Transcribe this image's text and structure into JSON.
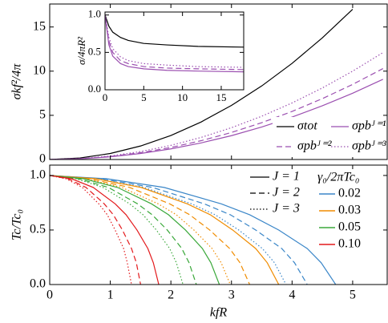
{
  "chart_data": [
    {
      "type": "line",
      "ylabel": "σkf²/4π",
      "xlim": [
        0,
        5.57
      ],
      "ylim": [
        0,
        17.6
      ],
      "xticks": [
        0,
        1,
        2,
        3,
        4,
        5
      ],
      "yticks": [
        0,
        5,
        10,
        15
      ],
      "x": [
        0,
        0.5,
        1,
        1.5,
        2,
        2.5,
        3,
        3.5,
        4,
        4.5,
        5,
        5.5
      ],
      "series": [
        {
          "name": "σtot",
          "color": "#000000",
          "dash": "solid",
          "values": [
            0,
            0.17,
            0.68,
            1.53,
            2.72,
            4.25,
            6.12,
            8.33,
            10.88,
            13.77,
            17.0,
            null
          ]
        },
        {
          "name": "σpbᴶ⁼¹",
          "color": "#9b4fb0",
          "dash": "solid",
          "values": [
            0,
            0.08,
            0.3,
            0.68,
            1.2,
            1.88,
            2.7,
            3.68,
            4.8,
            6.08,
            7.5,
            9.08
          ]
        },
        {
          "name": "σpbᴶ⁼²",
          "color": "#9b4fb0",
          "dash": "dashed",
          "values": [
            0,
            0.09,
            0.34,
            0.77,
            1.36,
            2.13,
            3.06,
            4.17,
            5.44,
            6.89,
            8.5,
            10.29
          ]
        },
        {
          "name": "σpbᴶ⁼³",
          "color": "#9b4fb0",
          "dash": "dotted",
          "values": [
            0,
            0.1,
            0.4,
            0.9,
            1.6,
            2.5,
            3.6,
            4.9,
            6.4,
            8.1,
            10.0,
            12.1
          ]
        }
      ],
      "legend": "lower right"
    },
    {
      "type": "line",
      "ylabel": "σ/4πR²",
      "xlim": [
        0,
        17.9
      ],
      "ylim": [
        0,
        1.04
      ],
      "xticks": [
        0,
        5,
        10,
        15
      ],
      "yticks": [
        {
          "value": 0,
          "label": "0.0"
        },
        {
          "value": 0.5,
          "label": "0.5"
        },
        {
          "value": 1,
          "label": "1.0"
        }
      ],
      "x": [
        0,
        0.5,
        1,
        2,
        3,
        5,
        8,
        12,
        18
      ],
      "series": [
        {
          "color": "#000000",
          "dash": "solid",
          "values": [
            1,
            0.85,
            0.77,
            0.7,
            0.66,
            0.62,
            0.6,
            0.58,
            0.57
          ]
        },
        {
          "color": "#9b4fb0",
          "dash": "solid",
          "values": [
            1,
            0.6,
            0.45,
            0.35,
            0.31,
            0.28,
            0.26,
            0.25,
            0.24
          ]
        },
        {
          "color": "#9b4fb0",
          "dash": "dashed",
          "values": [
            1,
            0.65,
            0.5,
            0.39,
            0.35,
            0.31,
            0.29,
            0.28,
            0.27
          ]
        },
        {
          "color": "#9b4fb0",
          "dash": "dotted",
          "values": [
            1,
            0.7,
            0.55,
            0.44,
            0.39,
            0.35,
            0.33,
            0.31,
            0.3
          ]
        }
      ]
    },
    {
      "type": "multiline",
      "xlabel": "kfR",
      "ylabel": "Tc/Tc₀",
      "xlim": [
        0,
        5.57
      ],
      "ylim": [
        0,
        1.095
      ],
      "xticks": [
        0,
        1,
        2,
        3,
        4,
        5
      ],
      "yticks": [
        {
          "value": 0,
          "label": "0.0"
        },
        {
          "value": 0.5,
          "label": "0.5"
        },
        {
          "value": 1,
          "label": "1.0"
        }
      ],
      "line_styles": [
        {
          "label": "J = 1",
          "dash": "solid"
        },
        {
          "label": "J = 2",
          "dash": "dashed"
        },
        {
          "label": "J = 3",
          "dash": "dotted"
        }
      ],
      "color_legend_title": "γ₀/2πTc₀",
      "groups": [
        {
          "name": "0.02",
          "color": "#3a86c8",
          "curves": [
            {
              "x": [
                0,
                0.94,
                1.89,
                2.83,
                3.3,
                3.78,
                4.25,
                4.48,
                4.72
              ],
              "values": [
                1,
                0.97,
                0.89,
                0.74,
                0.64,
                0.5,
                0.33,
                0.2,
                0
              ]
            },
            {
              "x": [
                0,
                0.85,
                1.7,
                2.55,
                2.98,
                3.4,
                3.83,
                4.04,
                4.25
              ],
              "values": [
                1,
                0.97,
                0.89,
                0.74,
                0.64,
                0.5,
                0.33,
                0.2,
                0
              ]
            },
            {
              "x": [
                0,
                0.78,
                1.56,
                2.34,
                2.73,
                3.12,
                3.51,
                3.71,
                3.9
              ],
              "values": [
                1,
                0.97,
                0.89,
                0.74,
                0.64,
                0.5,
                0.33,
                0.2,
                0
              ]
            }
          ]
        },
        {
          "name": "0.03",
          "color": "#f08c00",
          "curves": [
            {
              "x": [
                0,
                0.76,
                1.51,
                2.27,
                2.65,
                3.02,
                3.4,
                3.59,
                3.78
              ],
              "values": [
                1,
                0.97,
                0.89,
                0.74,
                0.64,
                0.5,
                0.33,
                0.2,
                0
              ]
            },
            {
              "x": [
                0,
                0.66,
                1.32,
                1.98,
                2.31,
                2.64,
                2.97,
                3.14,
                3.3
              ],
              "values": [
                1,
                0.97,
                0.89,
                0.74,
                0.64,
                0.5,
                0.33,
                0.2,
                0
              ]
            },
            {
              "x": [
                0,
                0.6,
                1.19,
                1.79,
                2.09,
                2.38,
                2.68,
                2.83,
                2.98
              ],
              "values": [
                1,
                0.97,
                0.89,
                0.74,
                0.64,
                0.5,
                0.33,
                0.2,
                0
              ]
            }
          ]
        },
        {
          "name": "0.05",
          "color": "#3aa83a",
          "curves": [
            {
              "x": [
                0,
                0.56,
                1.12,
                1.68,
                1.96,
                2.24,
                2.52,
                2.66,
                2.8
              ],
              "values": [
                1,
                0.97,
                0.89,
                0.74,
                0.64,
                0.5,
                0.33,
                0.2,
                0
              ]
            },
            {
              "x": [
                0,
                0.48,
                0.97,
                1.45,
                1.69,
                1.94,
                2.18,
                2.3,
                2.42
              ],
              "values": [
                1,
                0.97,
                0.89,
                0.74,
                0.64,
                0.5,
                0.33,
                0.2,
                0
              ]
            },
            {
              "x": [
                0,
                0.44,
                0.88,
                1.32,
                1.54,
                1.76,
                1.98,
                2.09,
                2.2
              ],
              "values": [
                1,
                0.97,
                0.89,
                0.74,
                0.64,
                0.5,
                0.33,
                0.2,
                0
              ]
            }
          ]
        },
        {
          "name": "0.10",
          "color": "#e3191c",
          "curves": [
            {
              "x": [
                0,
                0.36,
                0.72,
                1.08,
                1.26,
                1.44,
                1.62,
                1.71,
                1.8
              ],
              "values": [
                1,
                0.97,
                0.89,
                0.74,
                0.64,
                0.5,
                0.33,
                0.2,
                0
              ]
            },
            {
              "x": [
                0,
                0.3,
                0.6,
                0.9,
                1.05,
                1.2,
                1.35,
                1.43,
                1.5
              ],
              "values": [
                1,
                0.97,
                0.89,
                0.74,
                0.64,
                0.5,
                0.33,
                0.2,
                0
              ]
            },
            {
              "x": [
                0,
                0.27,
                0.54,
                0.81,
                0.95,
                1.08,
                1.22,
                1.28,
                1.35
              ],
              "values": [
                1,
                0.97,
                0.89,
                0.74,
                0.64,
                0.5,
                0.33,
                0.2,
                0
              ]
            }
          ]
        }
      ]
    }
  ]
}
